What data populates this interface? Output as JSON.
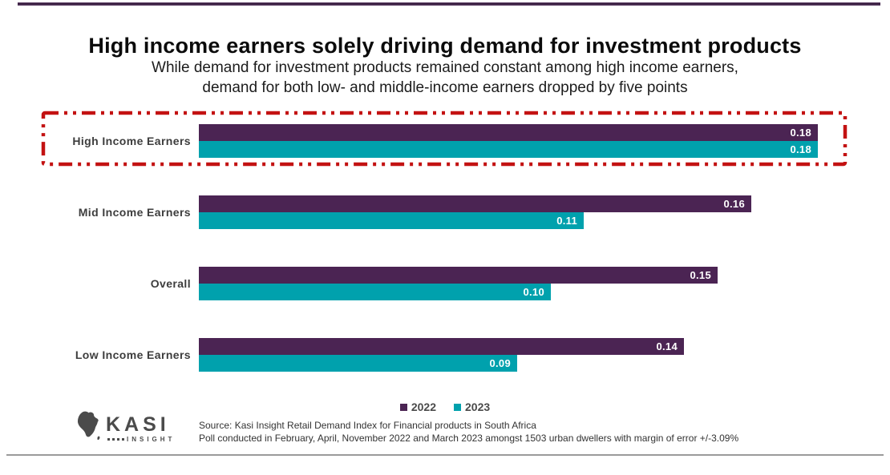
{
  "page": {
    "title": "High income earners solely driving demand for investment products",
    "subtitle_lines": [
      "While demand for investment products remained constant among high income earners,",
      "demand for both low- and middle-income earners dropped by five points"
    ]
  },
  "chart_data": {
    "type": "bar",
    "orientation": "horizontal",
    "title": "High income earners solely driving demand for investment products",
    "subtitle": "While demand for investment products remained constant among high income earners, demand for both low- and middle-income earners dropped by five points",
    "categories": [
      "High Income Earners",
      "Mid Income Earners",
      "Overall",
      "Low Income Earners"
    ],
    "series": [
      {
        "name": "2022",
        "color": "#4B2453",
        "values": [
          0.18,
          0.16,
          0.15,
          0.14
        ]
      },
      {
        "name": "2023",
        "color": "#00A1AD",
        "values": [
          0.18,
          0.11,
          0.1,
          0.09
        ]
      }
    ],
    "value_label_format": "0.00",
    "value_label_color": "#ffffff",
    "xlim": [
      0,
      0.18
    ],
    "grid": false,
    "legend_position": "bottom-center",
    "highlight": {
      "category": "High Income Earners",
      "style": "dashed-box",
      "color": "#C31212"
    }
  },
  "footer": {
    "source_line1": "Source: Kasi Insight Retail Demand Index for Financial products in South Africa",
    "source_line2": "Poll conducted in February, April, November 2022 and March 2023 amongst 1503 urban dwellers with margin of error +/-3.09%",
    "logo": {
      "brand": "KASI",
      "sub": "INSIGHT"
    }
  },
  "colors": {
    "series_2022": "#4B2453",
    "series_2023": "#00A1AD",
    "highlight_red": "#C31212",
    "top_rule": "#2e1636",
    "bottom_rule": "#9b9b9b"
  }
}
